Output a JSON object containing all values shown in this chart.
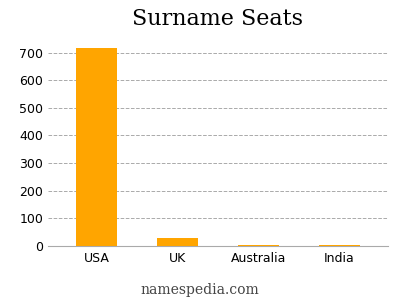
{
  "categories": [
    "USA",
    "UK",
    "Australia",
    "India"
  ],
  "values": [
    715,
    30,
    5,
    5
  ],
  "bar_color": "#FFA500",
  "title": "Surname Seats",
  "title_fontsize": 16,
  "ylim": [
    0,
    760
  ],
  "yticks": [
    0,
    100,
    200,
    300,
    400,
    500,
    600,
    700
  ],
  "grid_color": "#aaaaaa",
  "background_color": "#ffffff",
  "watermark": "namespedia.com",
  "watermark_fontsize": 10,
  "tick_fontsize": 9,
  "xtick_fontsize": 9
}
